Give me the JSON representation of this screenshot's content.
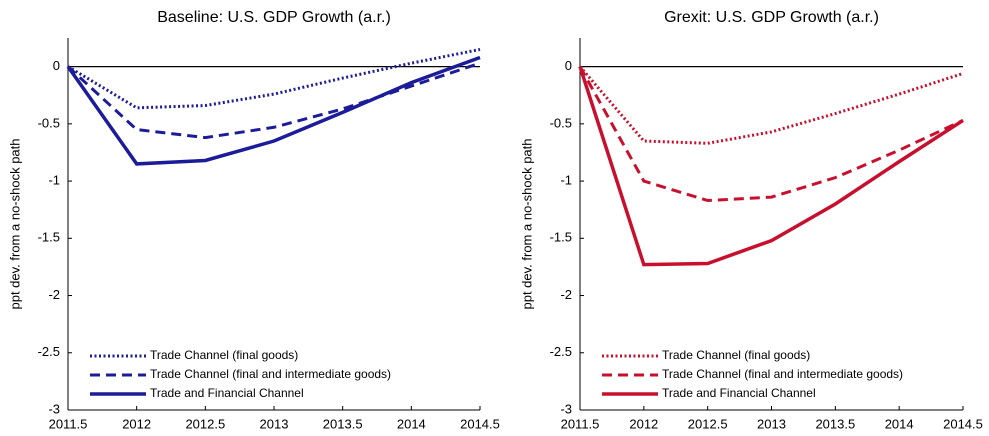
{
  "chart_data": [
    {
      "type": "line",
      "title": "Baseline: U.S. GDP Growth (a.r.)",
      "ylabel": "ppt dev. from a no-shock path",
      "x": [
        2011.5,
        2012,
        2012.5,
        2013,
        2013.5,
        2014,
        2014.5
      ],
      "series": [
        {
          "name": "Trade Channel (final goods)",
          "color": "#1c1c9a",
          "dash": "dotted",
          "values": [
            0,
            -0.36,
            -0.34,
            -0.24,
            -0.1,
            0.03,
            0.15
          ]
        },
        {
          "name": "Trade Channel (final and intermediate goods)",
          "color": "#1c1c9a",
          "dash": "dashed",
          "values": [
            0,
            -0.55,
            -0.62,
            -0.53,
            -0.37,
            -0.17,
            0.03
          ]
        },
        {
          "name": "Trade and Financial Channel",
          "color": "#1c1c9a",
          "dash": "solid",
          "values": [
            0,
            -0.85,
            -0.82,
            -0.65,
            -0.4,
            -0.14,
            0.08
          ]
        }
      ],
      "xlim": [
        2011.5,
        2014.5
      ],
      "xticks": [
        2011.5,
        2012,
        2012.5,
        2013,
        2013.5,
        2014,
        2014.5
      ],
      "ylim": [
        -3,
        0.25
      ],
      "yticks": [
        0,
        -0.5,
        -1,
        -1.5,
        -2,
        -2.5,
        -3
      ],
      "legend": "lower left"
    },
    {
      "type": "line",
      "title": "Grexit: U.S. GDP Growth (a.r.)",
      "ylabel": "ppt dev. from a no-shock path",
      "x": [
        2011.5,
        2012,
        2012.5,
        2013,
        2013.5,
        2014,
        2014.5
      ],
      "series": [
        {
          "name": "Trade Channel (final goods)",
          "color": "#c8102e",
          "dash": "dotted",
          "values": [
            0,
            -0.65,
            -0.67,
            -0.57,
            -0.41,
            -0.24,
            -0.06
          ]
        },
        {
          "name": "Trade Channel (final and intermediate goods)",
          "color": "#c8102e",
          "dash": "dashed",
          "values": [
            0,
            -1.0,
            -1.17,
            -1.14,
            -0.97,
            -0.73,
            -0.47
          ]
        },
        {
          "name": "Trade and Financial Channel",
          "color": "#c8102e",
          "dash": "solid",
          "values": [
            0,
            -1.73,
            -1.72,
            -1.52,
            -1.2,
            -0.83,
            -0.47
          ]
        }
      ],
      "xlim": [
        2011.5,
        2014.5
      ],
      "xticks": [
        2011.5,
        2012,
        2012.5,
        2013,
        2013.5,
        2014,
        2014.5
      ],
      "ylim": [
        -3,
        0.25
      ],
      "yticks": [
        0,
        -0.5,
        -1,
        -1.5,
        -2,
        -2.5,
        -3
      ],
      "legend": "lower left"
    }
  ]
}
